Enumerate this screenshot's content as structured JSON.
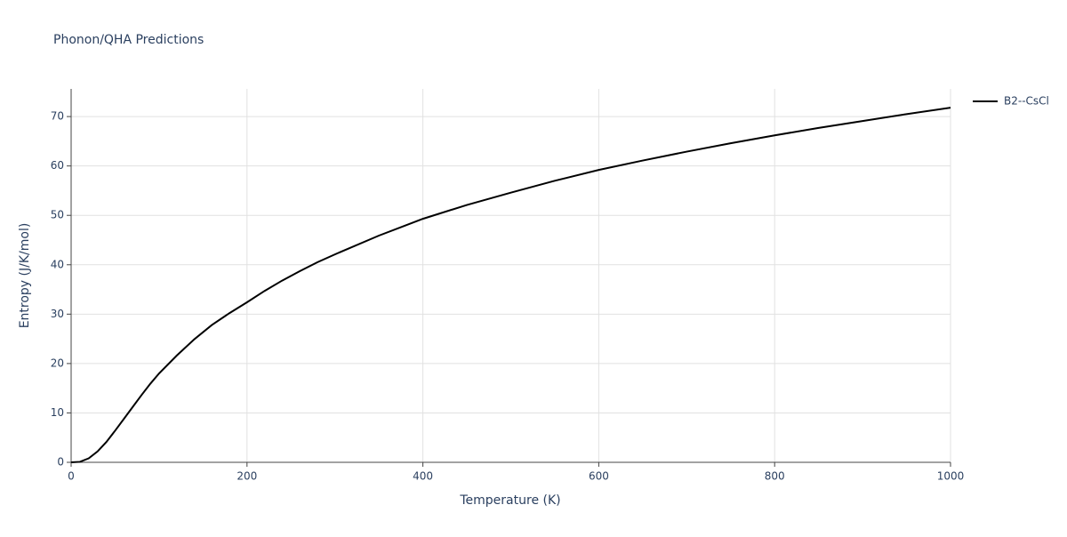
{
  "chart_data": {
    "type": "line",
    "title": "Phonon/QHA Predictions",
    "x_label": "Temperature (K)",
    "y_label": "Entropy (J/K/mol)",
    "x": [
      0,
      10,
      20,
      30,
      40,
      50,
      60,
      70,
      80,
      90,
      100,
      120,
      140,
      160,
      180,
      200,
      220,
      240,
      260,
      280,
      300,
      350,
      400,
      450,
      500,
      550,
      600,
      650,
      700,
      750,
      800,
      850,
      900,
      950,
      1000
    ],
    "series": [
      {
        "name": "B2--CsCl",
        "color": "#000000",
        "values": [
          0,
          0.1,
          0.8,
          2.2,
          4.1,
          6.4,
          8.8,
          11.2,
          13.6,
          15.9,
          18.0,
          21.6,
          24.9,
          27.8,
          30.2,
          32.4,
          34.7,
          36.8,
          38.7,
          40.5,
          42.1,
          45.9,
          49.3,
          52.1,
          54.6,
          57.0,
          59.2,
          61.1,
          62.9,
          64.6,
          66.2,
          67.7,
          69.1,
          70.5,
          71.8
        ]
      }
    ],
    "xlim": [
      0,
      1000
    ],
    "xticks": [
      0,
      200,
      400,
      600,
      800,
      1000
    ],
    "ylim": [
      0,
      75.6
    ],
    "yticks": [
      0,
      10,
      20,
      30,
      40,
      50,
      60,
      70
    ],
    "grid": true,
    "legend": "right"
  }
}
